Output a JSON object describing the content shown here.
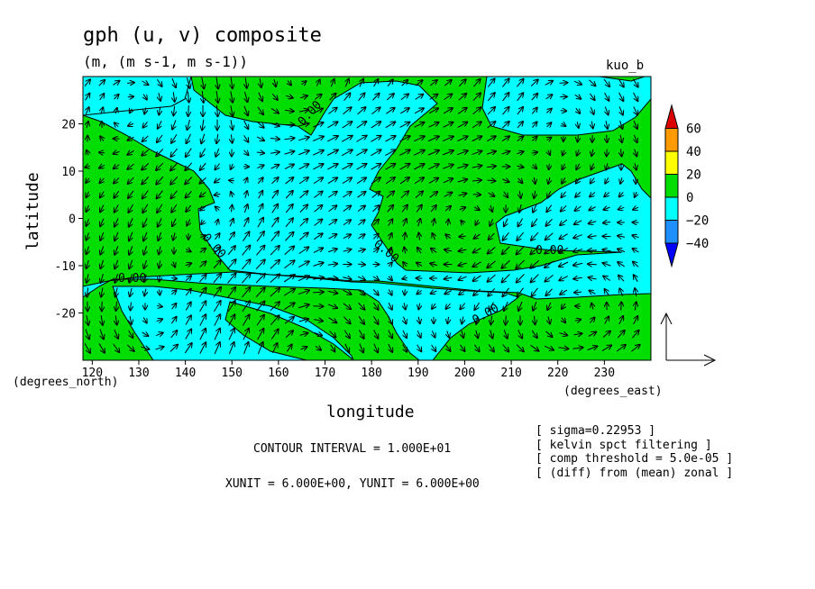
{
  "chart_data": {
    "type": "heatmap",
    "title": "gph (u, v) composite",
    "subtitle": "(m, (m s-1, m s-1))",
    "corner_label": "kuo_b",
    "xlabel": "longitude",
    "x_unit_label": "(degrees_east)",
    "y_unit_label": "(degrees_north)",
    "ylabel": "latitude",
    "xlim": [
      118,
      240
    ],
    "ylim": [
      -30,
      30
    ],
    "x_ticks": [
      120,
      130,
      140,
      150,
      160,
      170,
      180,
      190,
      200,
      210,
      220,
      230
    ],
    "y_ticks": [
      -20,
      -10,
      0,
      10,
      20
    ],
    "contour_labels": [
      "0.00",
      "0.00",
      "0.00",
      "0.00",
      "0.00",
      "0.00"
    ],
    "colorbar": {
      "ticks": [
        "60",
        "40",
        "20",
        "0",
        "−20",
        "−40"
      ],
      "colors": [
        "#dd0000",
        "#ff9900",
        "#ffff00",
        "#00dd00",
        "#00ffff",
        "#1e90ff",
        "#0000ff"
      ]
    },
    "contour_interval": "CONTOUR INTERVAL = 1.000E+01",
    "unit_vector": "XUNIT = 6.000E+00, YUNIT = 6.000E+00",
    "notes": [
      "[ sigma=0.22953 ]",
      "[ kelvin spct filtering ]",
      "[ comp threshold = 5.0e-05 ]",
      "[ (diff) from (mean) zonal ]"
    ],
    "fill_colors": {
      "positive": "#00dd00",
      "negative": "#00ffff"
    },
    "grid": false
  }
}
